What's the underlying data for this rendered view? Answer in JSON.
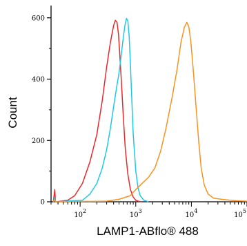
{
  "chart_data": {
    "type": "line",
    "title": "",
    "xlabel": "LAMP1-ABflo® 488",
    "ylabel": "Count",
    "x_scale": "log",
    "xlim": [
      30,
      100000
    ],
    "ylim": [
      0,
      640
    ],
    "y_ticks": [
      0,
      200,
      400,
      600
    ],
    "y_tick_labels": [
      "0",
      "200",
      "400",
      "600"
    ],
    "x_ticks": [
      100,
      1000,
      10000,
      100000
    ],
    "x_tick_labels": [
      {
        "base": "10",
        "exp": "2"
      },
      {
        "base": "10",
        "exp": "3"
      },
      {
        "base": "10",
        "exp": "4"
      },
      {
        "base": "10",
        "exp": "5"
      }
    ],
    "grid": false,
    "legend": "none",
    "series": [
      {
        "color": "#e8282b",
        "x": [
          33,
          35,
          36,
          37,
          60,
          80,
          110,
          150,
          200,
          250,
          300,
          350,
          400,
          430,
          460,
          490,
          520,
          560,
          600,
          650,
          720,
          800,
          900,
          1000,
          1100,
          1300
        ],
        "y": [
          0,
          40,
          0,
          0,
          5,
          20,
          60,
          130,
          220,
          330,
          440,
          520,
          575,
          592,
          585,
          545,
          470,
          370,
          270,
          170,
          90,
          40,
          15,
          5,
          2,
          0
        ]
      },
      {
        "color": "#1ec8e8",
        "x": [
          33,
          35,
          36,
          37,
          110,
          150,
          200,
          250,
          300,
          350,
          400,
          450,
          500,
          550,
          600,
          640,
          680,
          720,
          760,
          800,
          850,
          900,
          1000,
          1100,
          1200,
          1400,
          1700
        ],
        "y": [
          0,
          15,
          0,
          0,
          5,
          25,
          60,
          110,
          170,
          240,
          310,
          370,
          420,
          480,
          540,
          575,
          598,
          590,
          540,
          450,
          330,
          220,
          100,
          45,
          20,
          5,
          0
        ]
      },
      {
        "color": "#f7931e",
        "x": [
          33,
          35,
          36,
          37,
          300,
          500,
          800,
          1000,
          1300,
          1700,
          2200,
          2800,
          3500,
          4500,
          5500,
          6500,
          7500,
          8300,
          9000,
          9800,
          10800,
          12000,
          13500,
          15000,
          17000,
          20000,
          25000,
          35000,
          50000,
          70000,
          100000
        ],
        "y": [
          0,
          8,
          0,
          0,
          2,
          8,
          20,
          40,
          60,
          80,
          110,
          165,
          240,
          340,
          430,
          520,
          570,
          585,
          570,
          520,
          430,
          320,
          200,
          110,
          55,
          25,
          12,
          8,
          5,
          3,
          2
        ]
      }
    ]
  }
}
